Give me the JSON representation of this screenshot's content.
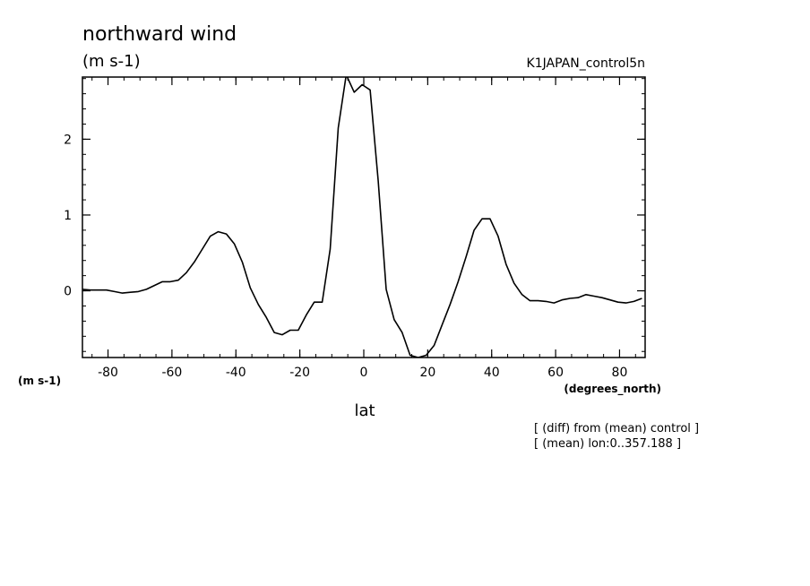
{
  "chart_data": {
    "type": "line",
    "title": "northward wind",
    "units_label": "(m s-1)",
    "run_name": "K1JAPAN_control5n",
    "y_axis_units": "(m s-1)",
    "x_axis_units": "(degrees_north)",
    "xlabel": "lat",
    "notes": [
      "[ (diff) from (mean) control ]",
      "[ (mean) lon:0..357.188 ]"
    ],
    "xlim": [
      -88,
      88
    ],
    "ylim": [
      -0.88,
      2.82
    ],
    "xticks": [
      -80,
      -60,
      -40,
      -20,
      0,
      20,
      40,
      60,
      80
    ],
    "xtick_labels": [
      "-80",
      "-60",
      "-40",
      "-20",
      "0",
      "20",
      "40",
      "60",
      "80"
    ],
    "yticks": [
      0,
      1,
      2
    ],
    "ytick_labels": [
      "0",
      "1",
      "2"
    ],
    "grid": false,
    "color": "#000000",
    "series": [
      {
        "x": [
          -88,
          -85.5,
          -83,
          -80.5,
          -78,
          -75.5,
          -73,
          -70.5,
          -68,
          -65.5,
          -63,
          -60.5,
          -58,
          -55.5,
          -53,
          -50.5,
          -48,
          -45.5,
          -43,
          -40.5,
          -38,
          -35.5,
          -33,
          -30.5,
          -28,
          -25.5,
          -23,
          -20.5,
          -18,
          -15.5,
          -13,
          -10.5,
          -8,
          -5.5,
          -3,
          -0.5,
          2,
          4.5,
          7,
          9.5,
          12,
          14.5,
          17,
          19.5,
          22,
          24.5,
          27,
          29.5,
          32,
          34.5,
          37,
          39.5,
          42,
          44.5,
          47,
          49.5,
          52,
          54.5,
          57,
          59.5,
          62,
          64.5,
          67,
          69.5,
          72,
          74.5,
          77,
          79.5,
          82,
          84.5,
          87
        ],
        "y": [
          0.02,
          0.01,
          0.01,
          0.01,
          -0.01,
          -0.03,
          -0.02,
          -0.01,
          0.02,
          0.07,
          0.12,
          0.12,
          0.14,
          0.24,
          0.38,
          0.55,
          0.72,
          0.78,
          0.75,
          0.62,
          0.38,
          0.04,
          -0.18,
          -0.35,
          -0.55,
          -0.58,
          -0.52,
          -0.52,
          -0.32,
          -0.15,
          -0.15,
          0.55,
          2.15,
          2.85,
          2.62,
          2.72,
          2.65,
          1.45,
          0.02,
          -0.38,
          -0.55,
          -0.85,
          -0.88,
          -0.85,
          -0.72,
          -0.45,
          -0.18,
          0.12,
          0.45,
          0.8,
          0.95,
          0.95,
          0.72,
          0.35,
          0.1,
          -0.05,
          -0.13,
          -0.13,
          -0.14,
          -0.16,
          -0.12,
          -0.1,
          -0.09,
          -0.05,
          -0.07,
          -0.09,
          -0.12,
          -0.15,
          -0.16,
          -0.14,
          -0.1
        ]
      }
    ]
  }
}
